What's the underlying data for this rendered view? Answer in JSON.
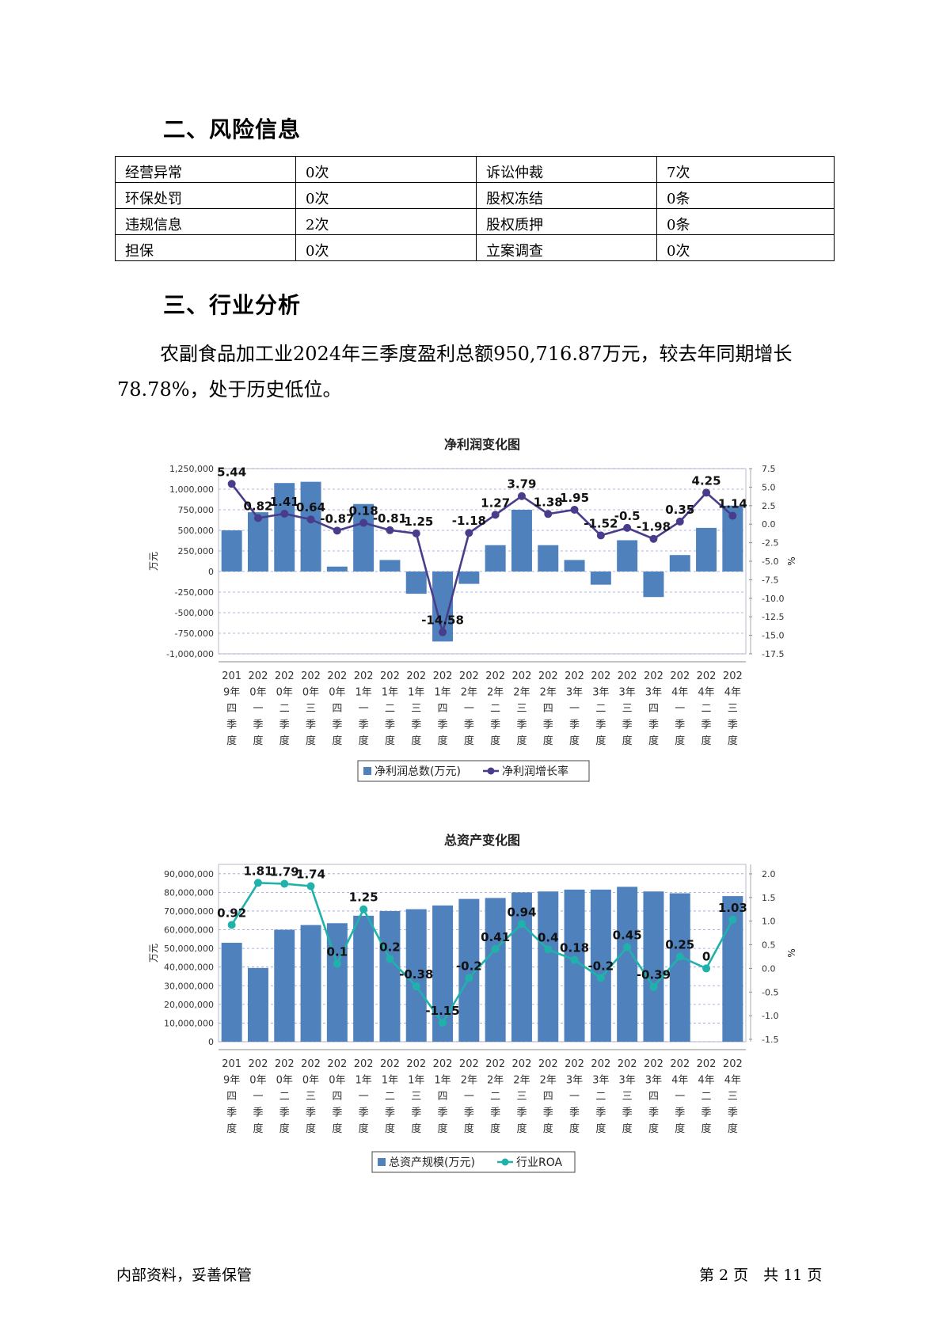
{
  "sections": {
    "risk_title": "二、风险信息",
    "industry_title": "三、行业分析"
  },
  "risk_table": [
    [
      "经营异常",
      "0次",
      "诉讼仲裁",
      "7次"
    ],
    [
      "环保处罚",
      "0次",
      "股权冻结",
      "0条"
    ],
    [
      "违规信息",
      "2次",
      "股权质押",
      "0条"
    ],
    [
      "担保",
      "0次",
      "立案调查",
      "0次"
    ]
  ],
  "paragraph": "农副食品加工业2024年三季度盈利总额950,716.87万元，较去年同期增长78.78%，处于历史低位。",
  "footer": {
    "left": "内部资料，妥善保管",
    "right": "第 2 页　共 11 页"
  },
  "colors": {
    "bar": "#4f81bd",
    "line1": "#483d8b",
    "line2": "#20b2aa"
  },
  "chart_data": [
    {
      "type": "bar+line",
      "title": "净利润变化图",
      "ylabel": "万元",
      "y2label": "%",
      "categories": [
        [
          "201",
          "9年",
          "四",
          "季",
          "度"
        ],
        [
          "202",
          "0年",
          "一",
          "季",
          "度"
        ],
        [
          "202",
          "0年",
          "二",
          "季",
          "度"
        ],
        [
          "202",
          "0年",
          "三",
          "季",
          "度"
        ],
        [
          "202",
          "0年",
          "四",
          "季",
          "度"
        ],
        [
          "202",
          "1年",
          "一",
          "季",
          "度"
        ],
        [
          "202",
          "1年",
          "二",
          "季",
          "度"
        ],
        [
          "202",
          "1年",
          "三",
          "季",
          "度"
        ],
        [
          "202",
          "1年",
          "四",
          "季",
          "度"
        ],
        [
          "202",
          "2年",
          "一",
          "季",
          "度"
        ],
        [
          "202",
          "2年",
          "二",
          "季",
          "度"
        ],
        [
          "202",
          "2年",
          "三",
          "季",
          "度"
        ],
        [
          "202",
          "2年",
          "四",
          "季",
          "度"
        ],
        [
          "202",
          "3年",
          "一",
          "季",
          "度"
        ],
        [
          "202",
          "3年",
          "二",
          "季",
          "度"
        ],
        [
          "202",
          "3年",
          "三",
          "季",
          "度"
        ],
        [
          "202",
          "3年",
          "四",
          "季",
          "度"
        ],
        [
          "202",
          "4年",
          "一",
          "季",
          "度"
        ],
        [
          "202",
          "4年",
          "二",
          "季",
          "度"
        ],
        [
          "202",
          "4年",
          "三",
          "季",
          "度"
        ]
      ],
      "ylim": [
        -1000000,
        1250000
      ],
      "yticks": [
        1250000,
        1000000,
        750000,
        500000,
        250000,
        0,
        -250000,
        -500000,
        -750000,
        -1000000
      ],
      "ytick_labels": [
        "1,250,000",
        "1,000,000",
        "750,000",
        "500,000",
        "250,000",
        "0",
        "-250,000",
        "-500,000",
        "-750,000",
        "-1,000,000"
      ],
      "y2lim": [
        -17.5,
        7.5
      ],
      "y2ticks": [
        7.5,
        5.0,
        2.5,
        0.0,
        -2.5,
        -5.0,
        -7.5,
        -10.0,
        -12.5,
        -15.0,
        -17.5
      ],
      "y2tick_labels": [
        "7.5",
        "5.0",
        "2.5",
        "0.0",
        "-2.5",
        "-5.0",
        "-7.5",
        "-10.0",
        "-12.5",
        "-15.0",
        "-17.5"
      ],
      "series": [
        {
          "name": "净利润总数(万元)",
          "kind": "bar",
          "values": [
            500000,
            720000,
            1075000,
            1090000,
            60000,
            820000,
            140000,
            -270000,
            -850000,
            -150000,
            320000,
            750000,
            320000,
            140000,
            -160000,
            380000,
            -310000,
            200000,
            530000,
            800000
          ]
        },
        {
          "name": "净利润增长率",
          "kind": "line",
          "values": [
            5.44,
            0.82,
            1.41,
            0.64,
            -0.87,
            0.18,
            -0.81,
            -1.25,
            -14.58,
            -1.18,
            1.27,
            3.79,
            1.38,
            1.95,
            -1.52,
            -0.5,
            -1.98,
            0.35,
            4.25,
            1.14
          ],
          "labels": [
            "5.44",
            "0.82",
            "1.41",
            "0.64",
            "-0.87",
            "0.18",
            "-0.81",
            "-1.25",
            "-14.58",
            "-1.18",
            "1.27",
            "3.79",
            "1.38",
            "1.95",
            "-1.52",
            "-0.5",
            "-1.98",
            "0.35",
            "4.25",
            "1.14"
          ]
        }
      ],
      "legend": "bottom"
    },
    {
      "type": "bar+line",
      "title": "总资产变化图",
      "ylabel": "万元",
      "y2label": "%",
      "categories": [
        [
          "201",
          "9年",
          "四",
          "季",
          "度"
        ],
        [
          "202",
          "0年",
          "一",
          "季",
          "度"
        ],
        [
          "202",
          "0年",
          "二",
          "季",
          "度"
        ],
        [
          "202",
          "0年",
          "三",
          "季",
          "度"
        ],
        [
          "202",
          "0年",
          "四",
          "季",
          "度"
        ],
        [
          "202",
          "1年",
          "一",
          "季",
          "度"
        ],
        [
          "202",
          "1年",
          "二",
          "季",
          "度"
        ],
        [
          "202",
          "1年",
          "三",
          "季",
          "度"
        ],
        [
          "202",
          "1年",
          "四",
          "季",
          "度"
        ],
        [
          "202",
          "2年",
          "一",
          "季",
          "度"
        ],
        [
          "202",
          "2年",
          "二",
          "季",
          "度"
        ],
        [
          "202",
          "2年",
          "三",
          "季",
          "度"
        ],
        [
          "202",
          "2年",
          "四",
          "季",
          "度"
        ],
        [
          "202",
          "3年",
          "一",
          "季",
          "度"
        ],
        [
          "202",
          "3年",
          "二",
          "季",
          "度"
        ],
        [
          "202",
          "3年",
          "三",
          "季",
          "度"
        ],
        [
          "202",
          "3年",
          "四",
          "季",
          "度"
        ],
        [
          "202",
          "4年",
          "一",
          "季",
          "度"
        ],
        [
          "202",
          "4年",
          "二",
          "季",
          "度"
        ],
        [
          "202",
          "4年",
          "三",
          "季",
          "度"
        ]
      ],
      "ylim": [
        0,
        95000000
      ],
      "yticks": [
        90000000,
        80000000,
        70000000,
        60000000,
        50000000,
        40000000,
        30000000,
        20000000,
        10000000,
        0
      ],
      "ytick_labels": [
        "90,000,000",
        "80,000,000",
        "70,000,000",
        "60,000,000",
        "50,000,000",
        "40,000,000",
        "30,000,000",
        "20,000,000",
        "10,000,000",
        "0"
      ],
      "y2lim": [
        -1.55,
        2.2
      ],
      "y2ticks": [
        2.0,
        1.5,
        1.0,
        0.5,
        0.0,
        -0.5,
        -1.0,
        -1.5
      ],
      "y2tick_labels": [
        "2.0",
        "1.5",
        "1.0",
        "0.5",
        "0.0",
        "-0.5",
        "-1.0",
        "-1.5"
      ],
      "series": [
        {
          "name": "总资产规模(万元)",
          "kind": "bar",
          "values": [
            53000000,
            39500000,
            60000000,
            62500000,
            63500000,
            67500000,
            70000000,
            71000000,
            73000000,
            76500000,
            77000000,
            80000000,
            80500000,
            81500000,
            81500000,
            83000000,
            80500000,
            79500000,
            0,
            78000000
          ]
        },
        {
          "name": "行业ROA",
          "kind": "line",
          "values": [
            0.92,
            1.81,
            1.79,
            1.74,
            0.1,
            1.25,
            0.2,
            -0.38,
            -1.15,
            -0.2,
            0.41,
            0.94,
            0.4,
            0.18,
            -0.2,
            0.45,
            -0.39,
            0.25,
            0,
            1.03
          ],
          "labels": [
            "0.92",
            "1.81",
            "1.79",
            "1.74",
            "0.1",
            "1.25",
            "0.2",
            "-0.38",
            "-1.15",
            "-0.2",
            "0.41",
            "0.94",
            "0.4",
            "0.18",
            "-0.2",
            "0.45",
            "-0.39",
            "0.25",
            "0",
            "1.03"
          ]
        }
      ],
      "legend": "bottom"
    }
  ]
}
